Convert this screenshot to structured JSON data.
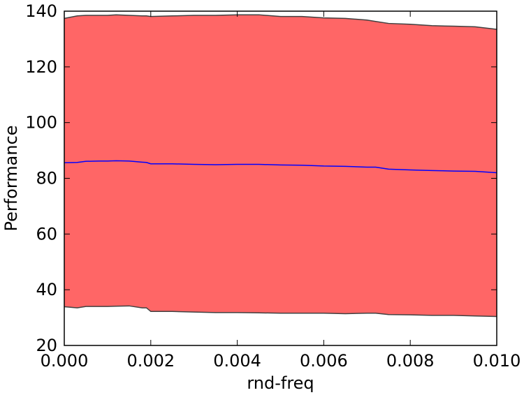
{
  "chart_data": {
    "type": "area",
    "title": "",
    "xlabel": "rnd-freq",
    "ylabel": "Performance",
    "xlim": [
      0.0,
      0.01
    ],
    "ylim": [
      20,
      140
    ],
    "xticks": [
      "0.000",
      "0.002",
      "0.004",
      "0.006",
      "0.008",
      "0.010"
    ],
    "yticks": [
      "20",
      "40",
      "60",
      "80",
      "100",
      "120",
      "140"
    ],
    "grid": false,
    "legend": "none",
    "x": [
      0.0,
      0.0003,
      0.0005,
      0.0008,
      0.001,
      0.0012,
      0.0015,
      0.0018,
      0.0019,
      0.002,
      0.0025,
      0.003,
      0.0035,
      0.004,
      0.0045,
      0.005,
      0.0055,
      0.006,
      0.0065,
      0.007,
      0.0072,
      0.0075,
      0.008,
      0.0085,
      0.009,
      0.0095,
      0.01
    ],
    "series": [
      {
        "values": [
          85.6,
          85.7,
          86.1,
          86.2,
          86.2,
          86.3,
          86.2,
          85.8,
          85.7,
          85.2,
          85.2,
          85.0,
          84.9,
          85.0,
          85.0,
          84.8,
          84.7,
          84.4,
          84.3,
          84.0,
          84.0,
          83.3,
          83.0,
          82.8,
          82.6,
          82.5,
          82.0
        ],
        "upper": [
          137.4,
          138.3,
          138.5,
          138.5,
          138.5,
          138.7,
          138.5,
          138.3,
          138.3,
          138.1,
          138.3,
          138.5,
          138.5,
          138.7,
          138.7,
          138.1,
          138.1,
          137.6,
          137.4,
          136.8,
          136.3,
          135.6,
          135.3,
          134.8,
          134.6,
          134.4,
          133.5
        ],
        "lower": [
          33.9,
          33.5,
          34.0,
          34.0,
          34.0,
          34.1,
          34.2,
          33.5,
          33.5,
          32.2,
          32.2,
          32.0,
          31.8,
          31.8,
          31.7,
          31.6,
          31.6,
          31.6,
          31.4,
          31.6,
          31.6,
          31.1,
          31.0,
          30.8,
          30.8,
          30.6,
          30.4
        ],
        "line_color": "#0000ff",
        "fill_color": "#ff6666",
        "edge_color": "#404040"
      }
    ]
  }
}
